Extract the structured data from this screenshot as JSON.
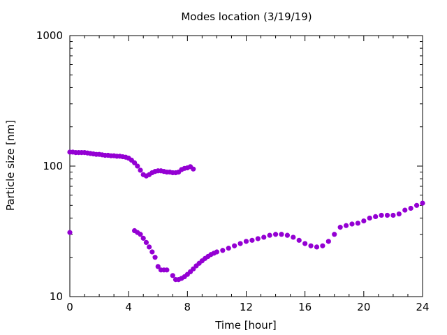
{
  "chart_data": {
    "type": "scatter",
    "title": "Modes location (3/19/19)",
    "xlabel": "Time [hour]",
    "ylabel": "Particle size [nm]",
    "xlim": [
      0,
      24
    ],
    "ylim": [
      10,
      1000
    ],
    "yscale": "log",
    "xticks": [
      0,
      4,
      8,
      12,
      16,
      20,
      24
    ],
    "yticks": [
      10,
      100,
      1000
    ],
    "grid": false,
    "legend": "none",
    "marker_color": "#9400d3",
    "series": [
      {
        "x": [
          0,
          0.2,
          0.4,
          0.6,
          0.8,
          1.0,
          1.2,
          1.4,
          1.6,
          1.8,
          2.0,
          2.2,
          2.4,
          2.6,
          2.8,
          3.0,
          3.2,
          3.4,
          3.6,
          3.8,
          4.0,
          4.2,
          4.4,
          4.6,
          4.8,
          5.0,
          5.2,
          5.4,
          5.6,
          5.8,
          6.0,
          6.2,
          6.4,
          6.6,
          6.8,
          7.0,
          7.2,
          7.4,
          7.6,
          7.8,
          8.0,
          8.2,
          8.4
        ],
        "y": [
          128,
          128,
          127,
          127,
          127,
          127,
          126,
          125,
          124,
          123,
          123,
          122,
          121,
          121,
          120,
          120,
          119,
          119,
          118,
          117,
          115,
          111,
          106,
          100,
          93,
          86,
          84,
          86,
          89,
          91,
          92,
          92,
          91,
          90,
          90,
          89,
          89,
          90,
          94,
          96,
          97,
          99,
          95
        ]
      },
      {
        "x": [
          0
        ],
        "y": [
          31
        ]
      },
      {
        "x": [
          4.4,
          4.6,
          4.8,
          5.0,
          5.2,
          5.4,
          5.6,
          5.8,
          6.0,
          6.2,
          6.4,
          6.6,
          7.0,
          7.2,
          7.4,
          7.6,
          7.8,
          8.0,
          8.2,
          8.4,
          8.6,
          8.8,
          9.0,
          9.2,
          9.4,
          9.6,
          9.8,
          10.0,
          10.4,
          10.8,
          11.2,
          11.6,
          12.0,
          12.4,
          12.8,
          13.2,
          13.6,
          14.0,
          14.4,
          14.8,
          15.2,
          15.6,
          16.0,
          16.4,
          16.8,
          17.2,
          17.6,
          18.0,
          18.4,
          18.8,
          19.2,
          19.6,
          20.0,
          20.4,
          20.8,
          21.2,
          21.6,
          22.0,
          22.4,
          22.8,
          23.2,
          23.6,
          24.0
        ],
        "y": [
          32,
          31,
          30,
          28,
          26,
          24,
          22,
          20,
          17,
          16,
          16,
          16,
          14.5,
          13.5,
          13.5,
          13.8,
          14.2,
          14.8,
          15.5,
          16.3,
          17.2,
          18,
          18.8,
          19.6,
          20.3,
          21,
          21.5,
          22,
          22.6,
          23.5,
          24.5,
          25.5,
          26.5,
          27,
          27.8,
          28.5,
          29.5,
          30,
          30,
          29.5,
          28.5,
          27,
          25.5,
          24.5,
          24,
          24.5,
          26.5,
          30,
          34,
          35,
          36,
          36.5,
          38,
          40,
          41,
          42,
          42,
          42,
          43,
          46,
          47.5,
          50,
          52
        ]
      }
    ]
  }
}
